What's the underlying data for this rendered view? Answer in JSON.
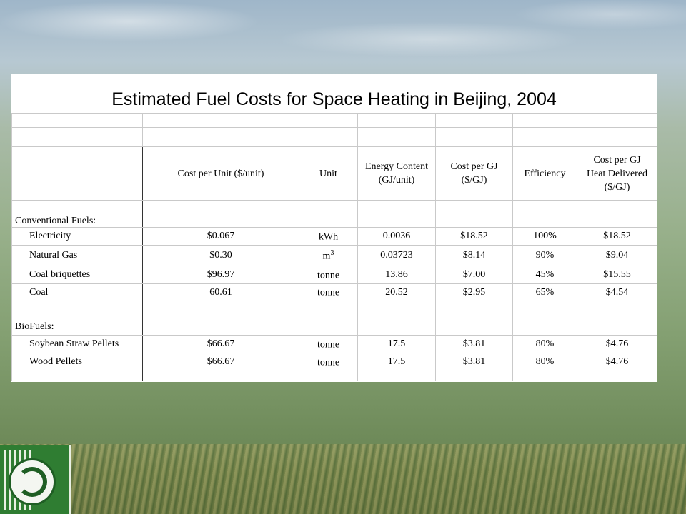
{
  "title": "Estimated Fuel Costs for Space Heating in Beijing, 2004",
  "headers": {
    "cost_per_unit": "Cost per Unit ($/unit)",
    "unit": "Unit",
    "energy_content": [
      "Energy Content",
      "(GJ/unit)"
    ],
    "cost_per_gj": [
      "Cost per GJ",
      "($/GJ)"
    ],
    "efficiency": "Efficiency",
    "cost_delivered": [
      "Cost per GJ",
      "Heat Delivered",
      "($/GJ)"
    ]
  },
  "sections": [
    {
      "label": "Conventional Fuels:",
      "rows": [
        {
          "name": "Electricity",
          "cost": "$0.067",
          "unit": "kWh",
          "unit_sup": "",
          "energy": "0.0036",
          "cost_gj": "$18.52",
          "eff": "100%",
          "delivered": "$18.52"
        },
        {
          "name": "Natural Gas",
          "cost": "$0.30",
          "unit": "m",
          "unit_sup": "3",
          "energy": "0.03723",
          "cost_gj": "$8.14",
          "eff": "90%",
          "delivered": "$9.04"
        },
        {
          "name": "Coal briquettes",
          "cost": "$96.97",
          "unit": "tonne",
          "unit_sup": "",
          "energy": "13.86",
          "cost_gj": "$7.00",
          "eff": "45%",
          "delivered": "$15.55"
        },
        {
          "name": "Coal",
          "cost": "60.61",
          "unit": "tonne",
          "unit_sup": "",
          "energy": "20.52",
          "cost_gj": "$2.95",
          "eff": "65%",
          "delivered": "$4.54"
        }
      ]
    },
    {
      "label": "BioFuels:",
      "rows": [
        {
          "name": "Soybean Straw Pellets",
          "cost": "$66.67",
          "unit": "tonne",
          "unit_sup": "",
          "energy": "17.5",
          "cost_gj": "$3.81",
          "eff": "80%",
          "delivered": "$4.76"
        },
        {
          "name": "Wood Pellets",
          "cost": "$66.67",
          "unit": "tonne",
          "unit_sup": "",
          "energy": "17.5",
          "cost_gj": "$3.81",
          "eff": "80%",
          "delivered": "$4.76"
        }
      ]
    }
  ]
}
